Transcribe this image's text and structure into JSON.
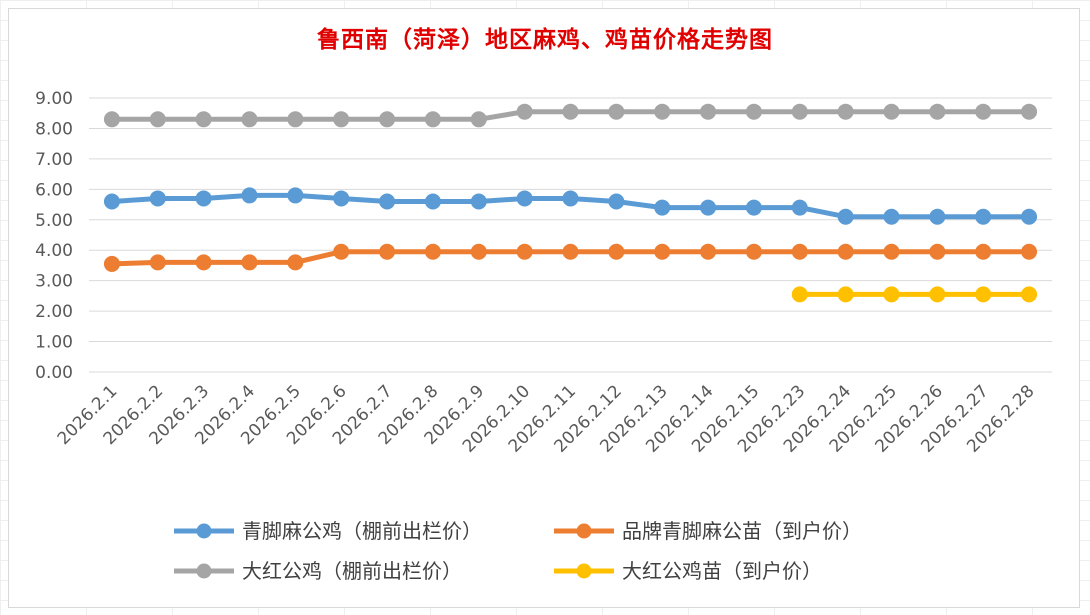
{
  "colors": {
    "gridline": "#d9d9d9",
    "axis_text": "#595959",
    "title": "#e00000"
  },
  "chart_data": {
    "type": "line",
    "title": "鲁西南（菏泽）地区麻鸡、鸡苗价格走势图",
    "xlabel": "",
    "ylabel": "",
    "ylim": [
      0,
      9
    ],
    "y_ticks": [
      "0.00",
      "1.00",
      "2.00",
      "3.00",
      "4.00",
      "5.00",
      "6.00",
      "7.00",
      "8.00",
      "9.00"
    ],
    "grid": true,
    "legend_position": "bottom",
    "categories": [
      "2026.2.1",
      "2026.2.2",
      "2026.2.3",
      "2026.2.4",
      "2026.2.5",
      "2026.2.6",
      "2026.2.7",
      "2026.2.8",
      "2026.2.9",
      "2026.2.10",
      "2026.2.11",
      "2026.2.12",
      "2026.2.13",
      "2026.2.14",
      "2026.2.15",
      "2026.2.23",
      "2026.2.24",
      "2026.2.25",
      "2026.2.26",
      "2026.2.27",
      "2026.2.28"
    ],
    "series": [
      {
        "name": "青脚麻公鸡（棚前出栏价）",
        "color": "#5b9bd5",
        "values": [
          5.6,
          5.7,
          5.7,
          5.8,
          5.8,
          5.7,
          5.6,
          5.6,
          5.6,
          5.7,
          5.7,
          5.6,
          5.4,
          5.4,
          5.4,
          5.4,
          5.1,
          5.1,
          5.1,
          5.1,
          5.1
        ]
      },
      {
        "name": "品牌青脚麻公苗（到户价）",
        "color": "#ed7d31",
        "values": [
          3.55,
          3.6,
          3.6,
          3.6,
          3.6,
          3.95,
          3.95,
          3.95,
          3.95,
          3.95,
          3.95,
          3.95,
          3.95,
          3.95,
          3.95,
          3.95,
          3.95,
          3.95,
          3.95,
          3.95,
          3.95
        ]
      },
      {
        "name": "大红公鸡（棚前出栏价）",
        "color": "#a5a5a5",
        "values": [
          8.3,
          8.3,
          8.3,
          8.3,
          8.3,
          8.3,
          8.3,
          8.3,
          8.3,
          8.55,
          8.55,
          8.55,
          8.55,
          8.55,
          8.55,
          8.55,
          8.55,
          8.55,
          8.55,
          8.55,
          8.55
        ]
      },
      {
        "name": "大红公鸡苗（到户价）",
        "color": "#ffc000",
        "values": [
          null,
          null,
          null,
          null,
          null,
          null,
          null,
          null,
          null,
          null,
          null,
          null,
          null,
          null,
          null,
          2.55,
          2.55,
          2.55,
          2.55,
          2.55,
          2.55
        ]
      }
    ]
  }
}
